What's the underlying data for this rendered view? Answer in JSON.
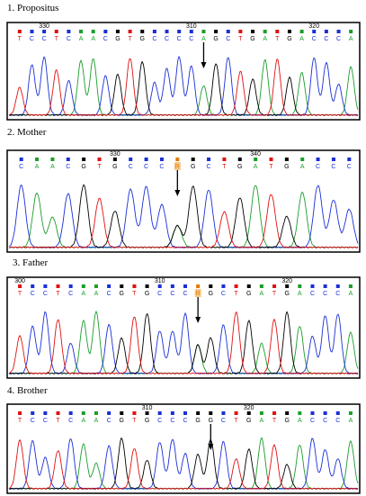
{
  "panels": [
    {
      "title": "1. Propositus",
      "bases": [
        "T",
        "C",
        "C",
        "T",
        "C",
        "A",
        "A",
        "C",
        "G",
        "T",
        "G",
        "C",
        "C",
        "C",
        "C",
        "A",
        "G",
        "C",
        "T",
        "G",
        "A",
        "T",
        "G",
        "A",
        "C",
        "C",
        "C",
        "A"
      ],
      "positions": [
        "330",
        "310",
        "320"
      ]
    },
    {
      "title": "2. Mother",
      "bases": [
        "C",
        "A",
        "A",
        "C",
        "G",
        "T",
        "G",
        "C",
        "C",
        "C",
        "R",
        "G",
        "C",
        "T",
        "G",
        "A",
        "T",
        "G",
        "A",
        "C",
        "C",
        "C"
      ],
      "positions": [
        "330",
        "340"
      ]
    },
    {
      "title": "3. Father",
      "bases": [
        "T",
        "C",
        "C",
        "T",
        "C",
        "A",
        "A",
        "C",
        "G",
        "T",
        "G",
        "C",
        "C",
        "C",
        "R",
        "G",
        "C",
        "T",
        "G",
        "A",
        "T",
        "G",
        "A",
        "C",
        "C",
        "C",
        "A"
      ],
      "positions": [
        "300",
        "310",
        "320"
      ]
    },
    {
      "title": "4. Brother",
      "bases": [
        "T",
        "C",
        "C",
        "T",
        "C",
        "A",
        "A",
        "C",
        "G",
        "T",
        "G",
        "C",
        "C",
        "C",
        "G",
        "G",
        "C",
        "T",
        "G",
        "A",
        "T",
        "G",
        "A",
        "C",
        "C",
        "C",
        "A"
      ],
      "positions": [
        "310",
        "320"
      ]
    }
  ]
}
